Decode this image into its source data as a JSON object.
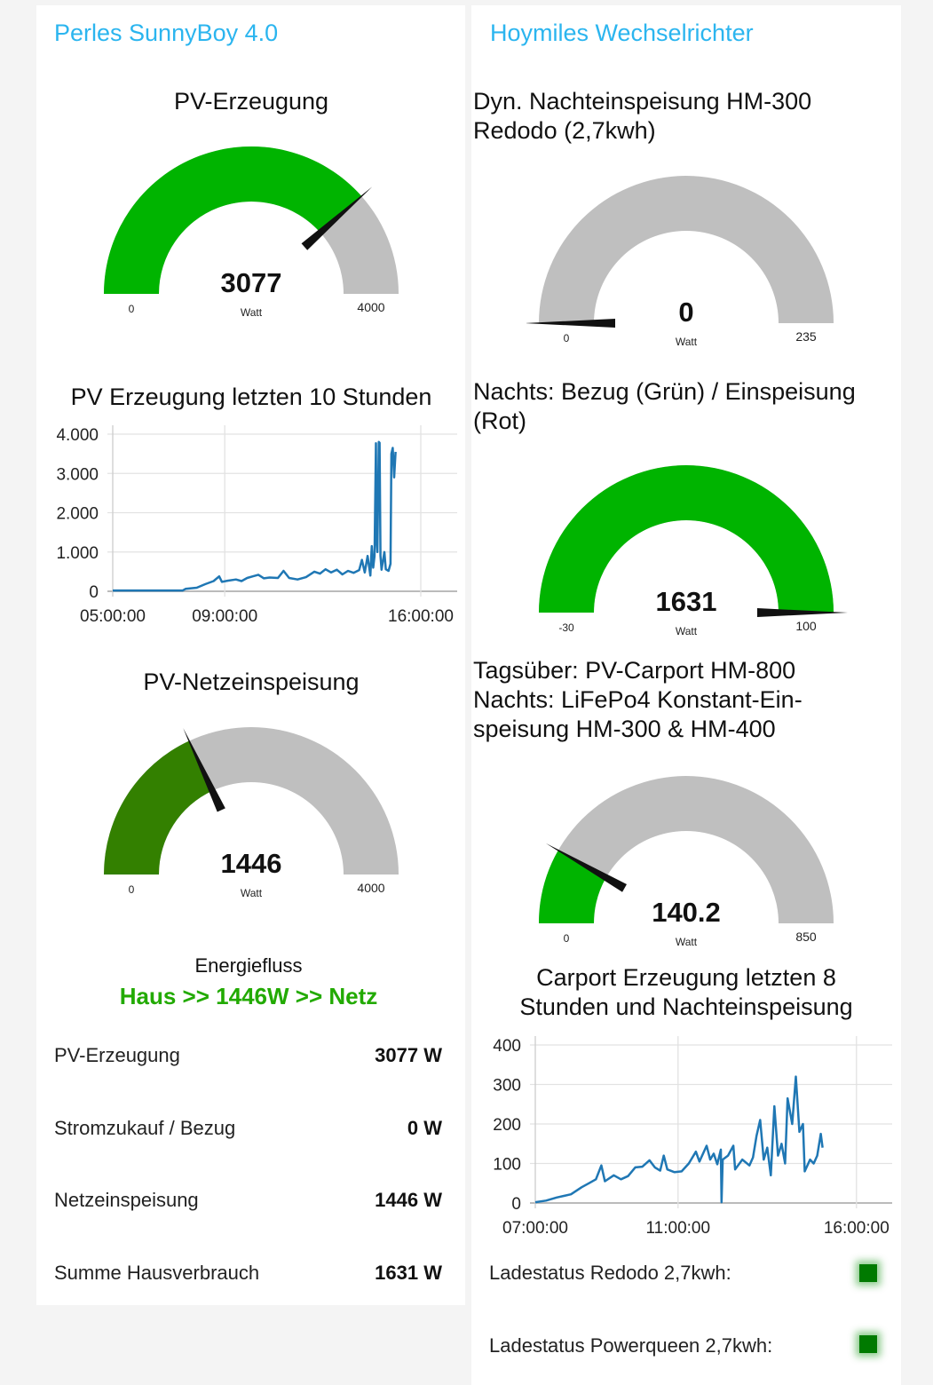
{
  "left": {
    "title": "Perles SunnyBoy 4.0",
    "gauge_pv": {
      "title": "PV-Erzeugung",
      "value": 3077,
      "min": 0,
      "max": 4000,
      "unit": "Watt",
      "color": "#00b400",
      "value_label": "3077",
      "min_label": "0",
      "max_label": "4000"
    },
    "chart_title": "PV Erzeugung letzten 10 Stunden",
    "gauge_grid": {
      "title": "PV-Netzeinspeisung",
      "value": 1446,
      "min": 0,
      "max": 4000,
      "unit": "Watt",
      "color": "#338000",
      "value_label": "1446",
      "min_label": "0",
      "max_label": "4000"
    },
    "energy_flow": {
      "label": "Energiefluss",
      "value": "Haus >> 1446W >> Netz",
      "color": "#22aa00"
    },
    "rows": [
      {
        "label": "PV-Erzeugung",
        "value": "3077 W"
      },
      {
        "label": "Stromzukauf / Bezug",
        "value": "0 W"
      },
      {
        "label": "Netzeinspeisung",
        "value": "1446 W"
      },
      {
        "label": "Summe Hausverbrauch",
        "value": "1631 W"
      }
    ]
  },
  "right": {
    "title": "Hoymiles Wechselrichter",
    "gauge_night": {
      "title_lines": [
        "Dyn. Nachteinspeisung HM-300",
        "Redodo (2,7kwh)"
      ],
      "value": 0,
      "min": 0,
      "max": 235,
      "unit": "Watt",
      "color": "#00b400",
      "value_label": "0",
      "min_label": "0",
      "max_label": "235"
    },
    "gauge_grid": {
      "title_lines": [
        "Nachts: Bezug (Grün) / Einspeisung",
        "(Rot)"
      ],
      "value": 1631,
      "min": -30,
      "max": 100,
      "unit": "Watt",
      "color": "#00b400",
      "value_label": "1631",
      "min_label": "-30",
      "max_label": "100"
    },
    "gauge_carport": {
      "title_lines": [
        "Tagsüber: PV-Carport HM-800",
        "Nachts: LiFePo4 Konstant-Ein-",
        "speisung HM-300 & HM-400"
      ],
      "value": 140.2,
      "min": 0,
      "max": 850,
      "unit": "Watt",
      "color": "#00b400",
      "value_label": "140.2",
      "min_label": "0",
      "max_label": "850"
    },
    "chart_title_lines": [
      "Carport Erzeugung letzten 8",
      "Stunden und Nachteinspeisung"
    ],
    "status": [
      {
        "label": "Ladestatus Redodo 2,7kwh:",
        "state": "ok",
        "color": "#007a00"
      },
      {
        "label": "Ladestatus Powerqueen 2,7kwh:",
        "state": "ok",
        "color": "#007a00"
      }
    ]
  },
  "chart_data": [
    {
      "type": "line",
      "title": "PV Erzeugung letzten 10 Stunden",
      "xlabel": "",
      "ylabel": "",
      "x_unit": "hour",
      "xlim": [
        5,
        17.3
      ],
      "ylim": [
        0,
        4000
      ],
      "y_ticks": [
        0,
        1000,
        2000,
        3000,
        4000
      ],
      "y_tick_labels": [
        "0",
        "1.000",
        "2.000",
        "3.000",
        "4.000"
      ],
      "x_ticks": [
        5,
        9,
        16
      ],
      "x_tick_labels": [
        "05:00:00",
        "09:00:00",
        "16:00:00"
      ],
      "grid": true,
      "color": "#1f77b4",
      "points": [
        [
          5,
          20
        ],
        [
          6,
          20
        ],
        [
          7,
          20
        ],
        [
          7.5,
          20
        ],
        [
          7.6,
          60
        ],
        [
          8,
          90
        ],
        [
          8.3,
          180
        ],
        [
          8.6,
          260
        ],
        [
          8.8,
          380
        ],
        [
          8.9,
          240
        ],
        [
          9.1,
          270
        ],
        [
          9.4,
          300
        ],
        [
          9.6,
          260
        ],
        [
          9.8,
          340
        ],
        [
          10,
          380
        ],
        [
          10.2,
          420
        ],
        [
          10.4,
          330
        ],
        [
          10.6,
          350
        ],
        [
          10.9,
          340
        ],
        [
          11.1,
          520
        ],
        [
          11.3,
          340
        ],
        [
          11.6,
          300
        ],
        [
          11.9,
          360
        ],
        [
          12.2,
          500
        ],
        [
          12.4,
          450
        ],
        [
          12.6,
          560
        ],
        [
          12.8,
          480
        ],
        [
          13.0,
          550
        ],
        [
          13.2,
          430
        ],
        [
          13.4,
          520
        ],
        [
          13.6,
          470
        ],
        [
          13.8,
          540
        ],
        [
          13.9,
          800
        ],
        [
          14.0,
          480
        ],
        [
          14.1,
          900
        ],
        [
          14.2,
          400
        ],
        [
          14.25,
          1150
        ],
        [
          14.3,
          600
        ],
        [
          14.35,
          900
        ],
        [
          14.4,
          3770
        ],
        [
          14.42,
          1300
        ],
        [
          14.45,
          1000
        ],
        [
          14.5,
          3800
        ],
        [
          14.53,
          3780
        ],
        [
          14.56,
          900
        ],
        [
          14.6,
          550
        ],
        [
          14.7,
          1000
        ],
        [
          14.75,
          560
        ],
        [
          14.85,
          520
        ],
        [
          14.92,
          700
        ],
        [
          14.95,
          3500
        ],
        [
          15.0,
          3650
        ],
        [
          15.05,
          2900
        ],
        [
          15.1,
          3550
        ]
      ]
    },
    {
      "type": "line",
      "title": "Carport Erzeugung letzten 8 Stunden und Nachteinspeisung",
      "xlabel": "",
      "ylabel": "",
      "x_unit": "hour",
      "xlim": [
        7,
        17
      ],
      "ylim": [
        0,
        400
      ],
      "y_ticks": [
        0,
        100,
        200,
        300,
        400
      ],
      "y_tick_labels": [
        "0",
        "100",
        "200",
        "300",
        "400"
      ],
      "x_ticks": [
        7,
        11,
        16
      ],
      "x_tick_labels": [
        "07:00:00",
        "11:00:00",
        "16:00:00"
      ],
      "grid": true,
      "color": "#1f77b4",
      "points": [
        [
          7,
          2
        ],
        [
          7.3,
          6
        ],
        [
          7.6,
          14
        ],
        [
          8,
          22
        ],
        [
          8.3,
          40
        ],
        [
          8.5,
          50
        ],
        [
          8.7,
          60
        ],
        [
          8.85,
          95
        ],
        [
          8.95,
          55
        ],
        [
          9.2,
          70
        ],
        [
          9.4,
          60
        ],
        [
          9.6,
          68
        ],
        [
          9.8,
          90
        ],
        [
          10.0,
          92
        ],
        [
          10.2,
          108
        ],
        [
          10.35,
          90
        ],
        [
          10.5,
          82
        ],
        [
          10.6,
          120
        ],
        [
          10.7,
          85
        ],
        [
          10.9,
          78
        ],
        [
          11.1,
          80
        ],
        [
          11.3,
          100
        ],
        [
          11.5,
          130
        ],
        [
          11.6,
          105
        ],
        [
          11.8,
          145
        ],
        [
          11.9,
          110
        ],
        [
          12.0,
          125
        ],
        [
          12.1,
          98
        ],
        [
          12.2,
          135
        ],
        [
          12.22,
          2
        ],
        [
          12.25,
          110
        ],
        [
          12.4,
          120
        ],
        [
          12.55,
          145
        ],
        [
          12.6,
          85
        ],
        [
          12.8,
          110
        ],
        [
          13.0,
          95
        ],
        [
          13.1,
          115
        ],
        [
          13.2,
          170
        ],
        [
          13.3,
          210
        ],
        [
          13.4,
          110
        ],
        [
          13.5,
          140
        ],
        [
          13.6,
          70
        ],
        [
          13.7,
          245
        ],
        [
          13.8,
          120
        ],
        [
          13.9,
          150
        ],
        [
          14.0,
          100
        ],
        [
          14.07,
          265
        ],
        [
          14.2,
          200
        ],
        [
          14.3,
          320
        ],
        [
          14.4,
          180
        ],
        [
          14.5,
          200
        ],
        [
          14.55,
          80
        ],
        [
          14.7,
          110
        ],
        [
          14.8,
          100
        ],
        [
          14.9,
          120
        ],
        [
          15.0,
          175
        ],
        [
          15.05,
          140
        ]
      ]
    }
  ]
}
